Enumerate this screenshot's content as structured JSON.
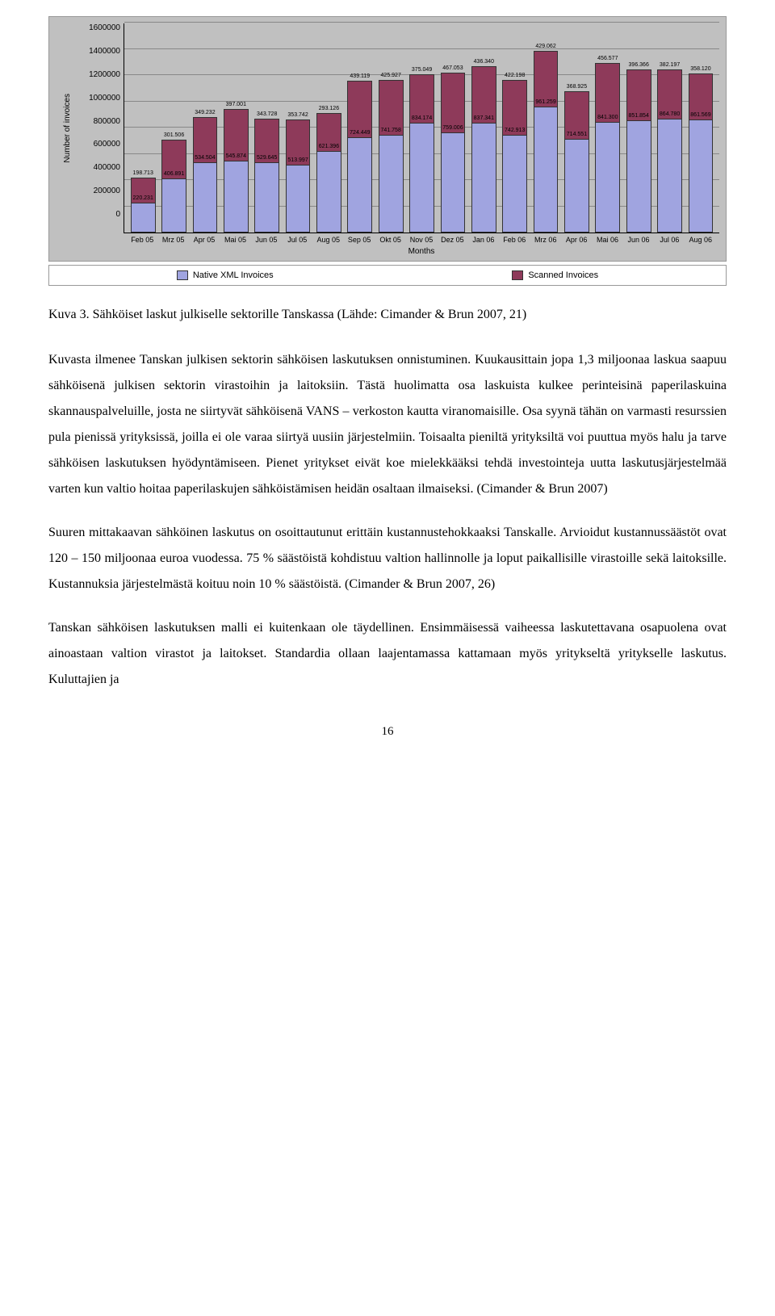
{
  "chart": {
    "type": "stacked-bar",
    "y_label": "Number of invoices",
    "x_label": "Months",
    "ymax": 1600000,
    "ytick_step": 200000,
    "yticks": [
      "0",
      "200000",
      "400000",
      "600000",
      "800000",
      "1000000",
      "1200000",
      "1400000",
      "1600000"
    ],
    "background_color": "#c0c0c0",
    "grid_color": "#888888",
    "bar_color_native": "#a0a4e0",
    "bar_color_scanned": "#8e3a5a",
    "bar_border_color": "#333333",
    "months": [
      "Feb 05",
      "Mrz 05",
      "Apr 05",
      "Mai 05",
      "Jun 05",
      "Jul 05",
      "Aug 05",
      "Sep 05",
      "Okt 05",
      "Nov 05",
      "Dez 05",
      "Jan 06",
      "Feb 06",
      "Mrz 06",
      "Apr 06",
      "Mai 06",
      "Jun 06",
      "Jul 06",
      "Aug 06"
    ],
    "series": [
      {
        "native": 220231,
        "scanned": 198713,
        "nl": "220.231",
        "sl": "198.713"
      },
      {
        "native": 406891,
        "scanned": 301506,
        "nl": "406.891",
        "sl": "301.506"
      },
      {
        "native": 534504,
        "scanned": 349232,
        "nl": "534.504",
        "sl": "349.232"
      },
      {
        "native": 545874,
        "scanned": 397001,
        "nl": "545.874",
        "sl": "397.001"
      },
      {
        "native": 529645,
        "scanned": 343728,
        "nl": "529.645",
        "sl": "343.728"
      },
      {
        "native": 513997,
        "scanned": 353742,
        "nl": "513.997",
        "sl": "353.742"
      },
      {
        "native": 621396,
        "scanned": 293126,
        "nl": "621.396",
        "sl": "293.126"
      },
      {
        "native": 724449,
        "scanned": 439119,
        "nl": "724.449",
        "sl": "439.119"
      },
      {
        "native": 741758,
        "scanned": 425927,
        "nl": "741.758",
        "sl": "425.927"
      },
      {
        "native": 834174,
        "scanned": 375049,
        "nl": "834.174",
        "sl": "375.049"
      },
      {
        "native": 759006,
        "scanned": 467053,
        "nl": "759.006",
        "sl": "467.053"
      },
      {
        "native": 837341,
        "scanned": 436340,
        "nl": "837.341",
        "sl": "436.340"
      },
      {
        "native": 742913,
        "scanned": 422198,
        "nl": "742.913",
        "sl": "422.198"
      },
      {
        "native": 961259,
        "scanned": 429062,
        "nl": "961.259",
        "sl": "429.062"
      },
      {
        "native": 714551,
        "scanned": 368925,
        "nl": "714.551",
        "sl": "368.925"
      },
      {
        "native": 841300,
        "scanned": 456577,
        "nl": "841.300",
        "sl": "456.577"
      },
      {
        "native": 851854,
        "scanned": 396366,
        "nl": "851.854",
        "sl": "396.366"
      },
      {
        "native": 864780,
        "scanned": 382197,
        "nl": "864.780",
        "sl": "382.197"
      },
      {
        "native": 861569,
        "scanned": 358120,
        "nl": "861.569",
        "sl": "358.120"
      }
    ],
    "legend": {
      "native": "Native XML Invoices",
      "scanned": "Scanned Invoices"
    }
  },
  "caption": "Kuva 3. Sähköiset laskut julkiselle sektorille Tanskassa (Lähde: Cimander & Brun 2007, 21)",
  "paragraphs": {
    "p1": "Kuvasta ilmenee Tanskan julkisen sektorin sähköisen laskutuksen onnistuminen. Kuukausittain jopa 1,3 miljoonaa laskua saapuu sähköisenä julkisen sektorin virastoihin ja laitoksiin. Tästä huolimatta osa laskuista kulkee perinteisinä paperilaskuina skannauspalveluille, josta ne siirtyvät sähköisenä VANS – verkoston kautta viranomaisille. Osa syynä tähän on varmasti resurssien pula pienissä yrityksissä, joilla ei ole varaa siirtyä uusiin järjestelmiin. Toisaalta pieniltä yrityksiltä voi puuttua myös halu ja tarve sähköisen laskutuksen hyödyntämiseen. Pienet yritykset eivät koe mielekkääksi tehdä investointeja uutta laskutusjärjestelmää varten kun valtio hoitaa paperilaskujen sähköistämisen heidän osaltaan ilmaiseksi. (Cimander & Brun 2007)",
    "p2": "Suuren mittakaavan sähköinen laskutus on osoittautunut erittäin kustannustehokkaaksi Tanskalle. Arvioidut kustannussäästöt ovat 120 – 150 miljoonaa euroa vuodessa. 75 % säästöistä kohdistuu valtion hallinnolle ja loput paikallisille virastoille sekä laitoksille. Kustannuksia järjestelmästä koituu noin 10 % säästöistä. (Cimander & Brun 2007, 26)",
    "p3": "Tanskan sähköisen laskutuksen malli ei kuitenkaan ole täydellinen. Ensimmäisessä vaiheessa laskutettavana osapuolena ovat ainoastaan valtion virastot ja laitokset. Standardia ollaan laajentamassa kattamaan myös yritykseltä yritykselle laskutus. Kuluttajien ja"
  },
  "page_number": "16"
}
